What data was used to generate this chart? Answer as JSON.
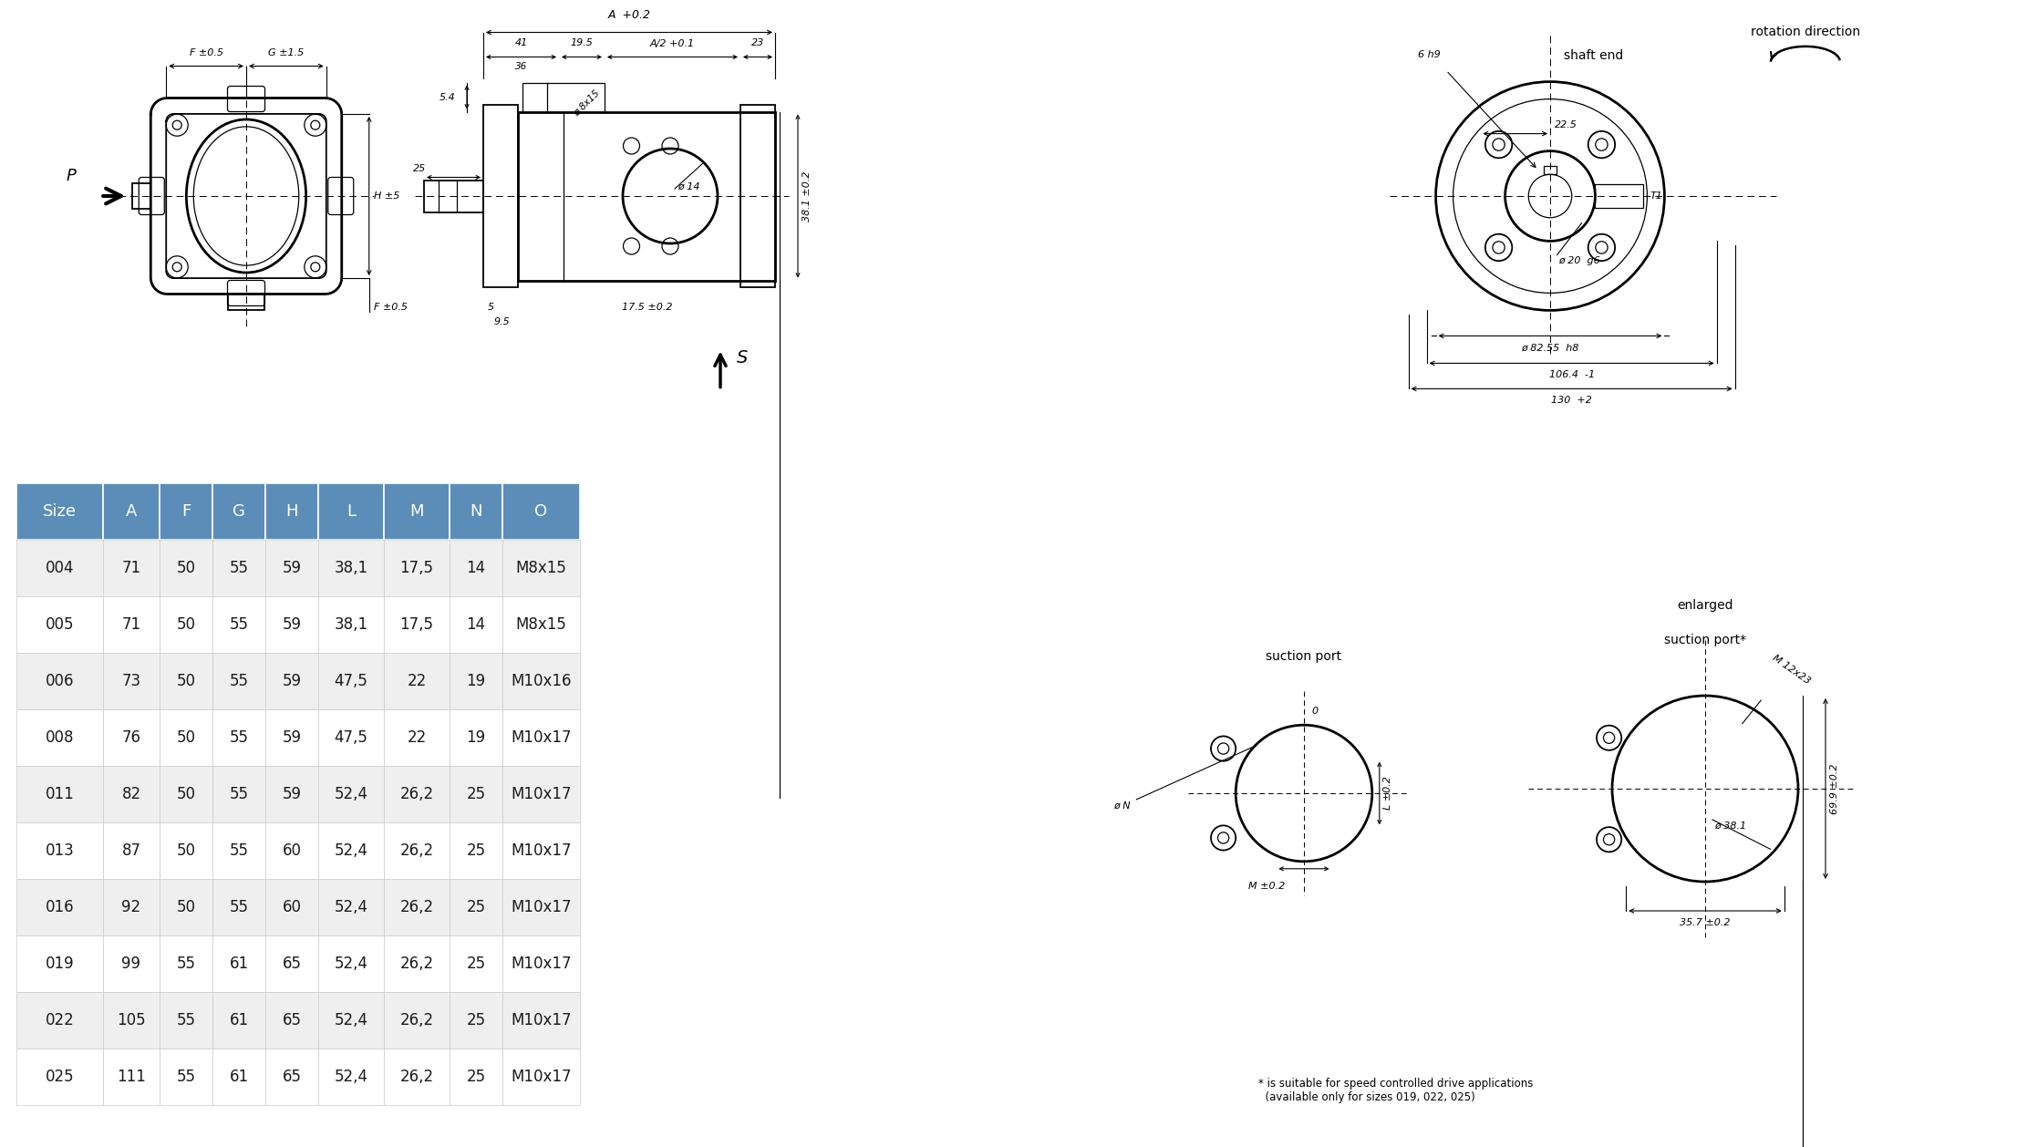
{
  "table_headers": [
    "Size",
    "A",
    "F",
    "G",
    "H",
    "L",
    "M",
    "N",
    "O"
  ],
  "table_data": [
    [
      "004",
      "71",
      "50",
      "55",
      "59",
      "38,1",
      "17,5",
      "14",
      "M8x15"
    ],
    [
      "005",
      "71",
      "50",
      "55",
      "59",
      "38,1",
      "17,5",
      "14",
      "M8x15"
    ],
    [
      "006",
      "73",
      "50",
      "55",
      "59",
      "47,5",
      "22",
      "19",
      "M10x16"
    ],
    [
      "008",
      "76",
      "50",
      "55",
      "59",
      "47,5",
      "22",
      "19",
      "M10x17"
    ],
    [
      "011",
      "82",
      "50",
      "55",
      "59",
      "52,4",
      "26,2",
      "25",
      "M10x17"
    ],
    [
      "013",
      "87",
      "50",
      "55",
      "60",
      "52,4",
      "26,2",
      "25",
      "M10x17"
    ],
    [
      "016",
      "92",
      "50",
      "55",
      "60",
      "52,4",
      "26,2",
      "25",
      "M10x17"
    ],
    [
      "019",
      "99",
      "55",
      "61",
      "65",
      "52,4",
      "26,2",
      "25",
      "M10x17"
    ],
    [
      "022",
      "105",
      "55",
      "61",
      "65",
      "52,4",
      "26,2",
      "25",
      "M10x17"
    ],
    [
      "025",
      "111",
      "55",
      "61",
      "65",
      "52,4",
      "26,2",
      "25",
      "M10x17"
    ]
  ],
  "header_bg": "#5B8DB8",
  "header_fg": "#FFFFFF",
  "row_bg_even": "#EFEFEF",
  "row_bg_odd": "#FFFFFF",
  "bg_color": "#FFFFFF",
  "note_text": "* is suitable for speed controlled drive applications\n  (available only for sizes 019, 022, 025)",
  "rotation_direction_text": "rotation direction",
  "shaft_end_text": "shaft end",
  "suction_port_text": "suction port",
  "enlarged_text1": "enlarged",
  "enlarged_text2": "suction port*",
  "P_label": "P",
  "S_label": "S",
  "dim_A": "A  +0.2",
  "dim_41": "41",
  "dim_19_5": "19.5",
  "dim_A2": "A/2 +0.1",
  "dim_23": "23",
  "dim_36": "36",
  "dim_F05": "F ±0.5",
  "dim_G15": "G ±1.5",
  "dim_H5": "H ±5",
  "dim_F05b": "F ±0.5",
  "dim_25": "25",
  "dim_54": "5.4",
  "dim_5": "5",
  "dim_9_5": "9.5",
  "dim_17_5": "17.5 ±0.2",
  "dim_ph14": "ø 14",
  "dim_ph8x15": "ø 8x15",
  "dim_38_1": "38.1 ±0.2",
  "dim_6h9": "6 h9",
  "dim_22_5": "22.5",
  "dim_ph20g6": "ø 20  g6",
  "dim_ph82": "ø 82.55  h8",
  "dim_106": "106.4  -1",
  "dim_130": "130  +2",
  "dim_T1": "T1",
  "dim_phN": "ø N",
  "dim_L02": "L ±0.2",
  "dim_M02": "M ±0.2",
  "dim_0": "0",
  "dim_ph38": "ø 38.1",
  "dim_699": "69.9 ±0.2",
  "dim_357": "35.7 ±0.2",
  "dim_M12x23": "M 12x23"
}
